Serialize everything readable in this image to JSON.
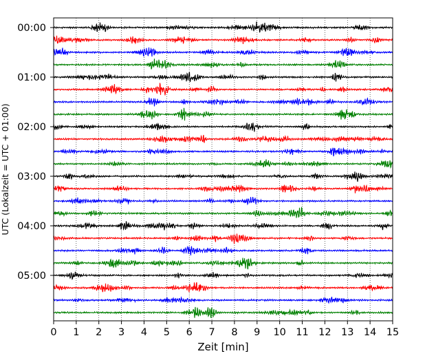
{
  "chart_data": {
    "type": "line",
    "title": "",
    "xlabel": "Zeit  [min]",
    "ylabel": "UTC (Lokalzeit = UTC + 01:00)",
    "xlim": [
      0,
      15
    ],
    "x_ticks": [
      0,
      1,
      2,
      3,
      4,
      5,
      6,
      7,
      8,
      9,
      10,
      11,
      12,
      13,
      14,
      15
    ],
    "x_tick_labels": [
      "0",
      "1",
      "2",
      "3",
      "4",
      "5",
      "6",
      "7",
      "8",
      "9",
      "10",
      "11",
      "12",
      "13",
      "14",
      "15"
    ],
    "y_tick_labels": [
      "00:00",
      "01:00",
      "02:00",
      "03:00",
      "04:00",
      "05:00"
    ],
    "grid": "vertical dotted",
    "trace_interval_minutes": 15,
    "trace_count": 24,
    "trace_colors": [
      "#000000",
      "#ff0000",
      "#0000ff",
      "#008000"
    ]
  }
}
